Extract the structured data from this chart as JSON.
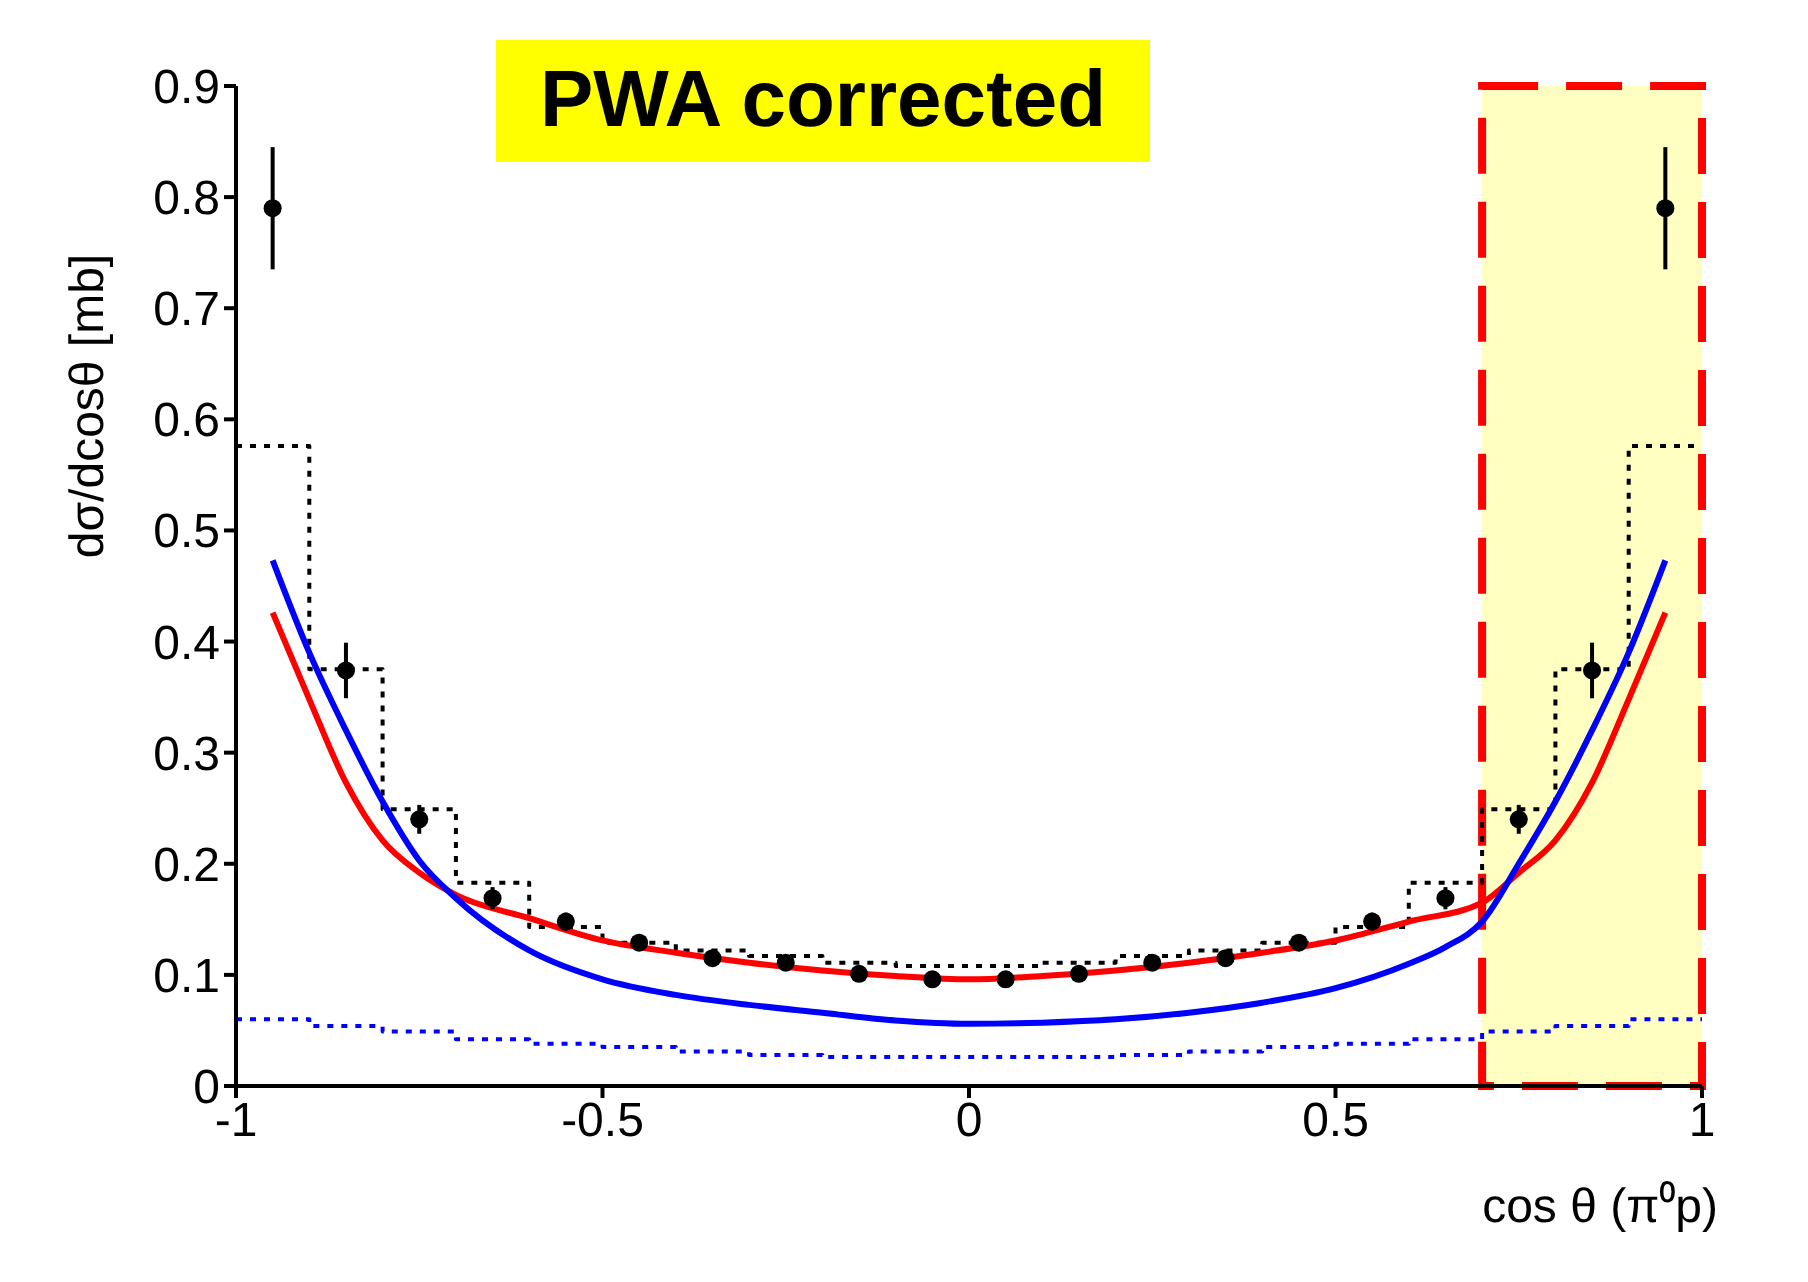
{
  "chart_data": {
    "type": "line",
    "xlabel": "cos θ (π⁰p)",
    "ylabel": "dσ/dcosθ [mb]",
    "annotations": [
      "PWA corrected"
    ],
    "xlim": [
      -1,
      1
    ],
    "xticks": [
      -1,
      -0.5,
      0,
      0.5,
      1
    ],
    "ylim": [
      0,
      0.9
    ],
    "yticks": [
      0,
      0.1,
      0.2,
      0.3,
      0.4,
      0.5,
      0.6,
      0.7,
      0.8,
      0.9
    ],
    "grid": false,
    "bands": [
      {
        "axis": "x",
        "from": 0.7,
        "to": 1,
        "color": "#ffff99"
      }
    ],
    "series": [
      {
        "type": "step",
        "color": "#000000",
        "line_style": "dotted",
        "marker": "none",
        "x": [
          -1,
          -0.9,
          -0.8,
          -0.7,
          -0.6,
          -0.5,
          -0.4,
          -0.3,
          -0.2,
          -0.1,
          0,
          0.1,
          0.2,
          0.3,
          0.4,
          0.5,
          0.6,
          0.7,
          0.8,
          0.9,
          1
        ],
        "values": [
          0.576,
          0.375,
          0.249,
          0.183,
          0.143,
          0.129,
          0.122,
          0.117,
          0.111,
          0.108,
          0.108,
          0.111,
          0.117,
          0.122,
          0.129,
          0.143,
          0.183,
          0.249,
          0.375,
          0.576,
          0.576
        ]
      },
      {
        "type": "step",
        "color": "#0000ff",
        "line_style": "dotted",
        "marker": "none",
        "x": [
          -1,
          -0.9,
          -0.8,
          -0.7,
          -0.6,
          -0.5,
          -0.4,
          -0.3,
          -0.2,
          -0.1,
          0,
          0.1,
          0.2,
          0.3,
          0.4,
          0.5,
          0.6,
          0.7,
          0.8,
          0.9,
          1
        ],
        "values": [
          0.06,
          0.054,
          0.049,
          0.042,
          0.038,
          0.035,
          0.031,
          0.028,
          0.026,
          0.026,
          0.026,
          0.026,
          0.028,
          0.031,
          0.035,
          0.038,
          0.042,
          0.049,
          0.054,
          0.06,
          0.06
        ]
      },
      {
        "color": "#ff0000",
        "line_style": "solid",
        "marker": "none",
        "x": [
          -0.95,
          -0.9,
          -0.85,
          -0.8,
          -0.75,
          -0.7,
          -0.6,
          -0.5,
          -0.4,
          -0.3,
          -0.2,
          -0.1,
          0,
          0.1,
          0.2,
          0.3,
          0.4,
          0.5,
          0.6,
          0.7,
          0.75,
          0.8,
          0.85,
          0.9,
          0.95
        ],
        "values": [
          0.426,
          0.348,
          0.273,
          0.221,
          0.192,
          0.172,
          0.151,
          0.131,
          0.12,
          0.111,
          0.104,
          0.099,
          0.096,
          0.099,
          0.104,
          0.111,
          0.12,
          0.131,
          0.148,
          0.165,
          0.192,
          0.221,
          0.273,
          0.348,
          0.426
        ]
      },
      {
        "color": "#0000ff",
        "line_style": "solid",
        "marker": "none",
        "x": [
          -0.95,
          -0.9,
          -0.85,
          -0.8,
          -0.75,
          -0.7,
          -0.6,
          -0.5,
          -0.4,
          -0.3,
          -0.2,
          -0.1,
          0,
          0.1,
          0.2,
          0.3,
          0.4,
          0.5,
          0.6,
          0.65,
          0.7,
          0.75,
          0.8,
          0.85,
          0.9,
          0.95
        ],
        "values": [
          0.473,
          0.39,
          0.32,
          0.256,
          0.203,
          0.169,
          0.122,
          0.096,
          0.082,
          0.073,
          0.066,
          0.059,
          0.056,
          0.057,
          0.06,
          0.066,
          0.075,
          0.088,
          0.11,
          0.125,
          0.148,
          0.2,
          0.256,
          0.32,
          0.39,
          0.473
        ]
      },
      {
        "type": "scatter",
        "color": "#000000",
        "marker": "circle",
        "x": [
          -0.95,
          -0.85,
          -0.75,
          -0.65,
          -0.55,
          -0.45,
          -0.35,
          -0.25,
          -0.15,
          -0.05,
          0.05,
          0.15,
          0.25,
          0.35,
          0.45,
          0.55,
          0.65,
          0.75,
          0.85,
          0.95
        ],
        "values": [
          0.79,
          0.374,
          0.24,
          0.169,
          0.148,
          0.129,
          0.115,
          0.111,
          0.101,
          0.096,
          0.096,
          0.101,
          0.111,
          0.115,
          0.129,
          0.148,
          0.169,
          0.24,
          0.374,
          0.79
        ],
        "errors": [
          0.055,
          0.025,
          0.013,
          0.01,
          0.008,
          0.007,
          0.007,
          0.007,
          0.007,
          0.007,
          0.007,
          0.007,
          0.007,
          0.007,
          0.007,
          0.008,
          0.01,
          0.013,
          0.025,
          0.055
        ]
      }
    ]
  }
}
